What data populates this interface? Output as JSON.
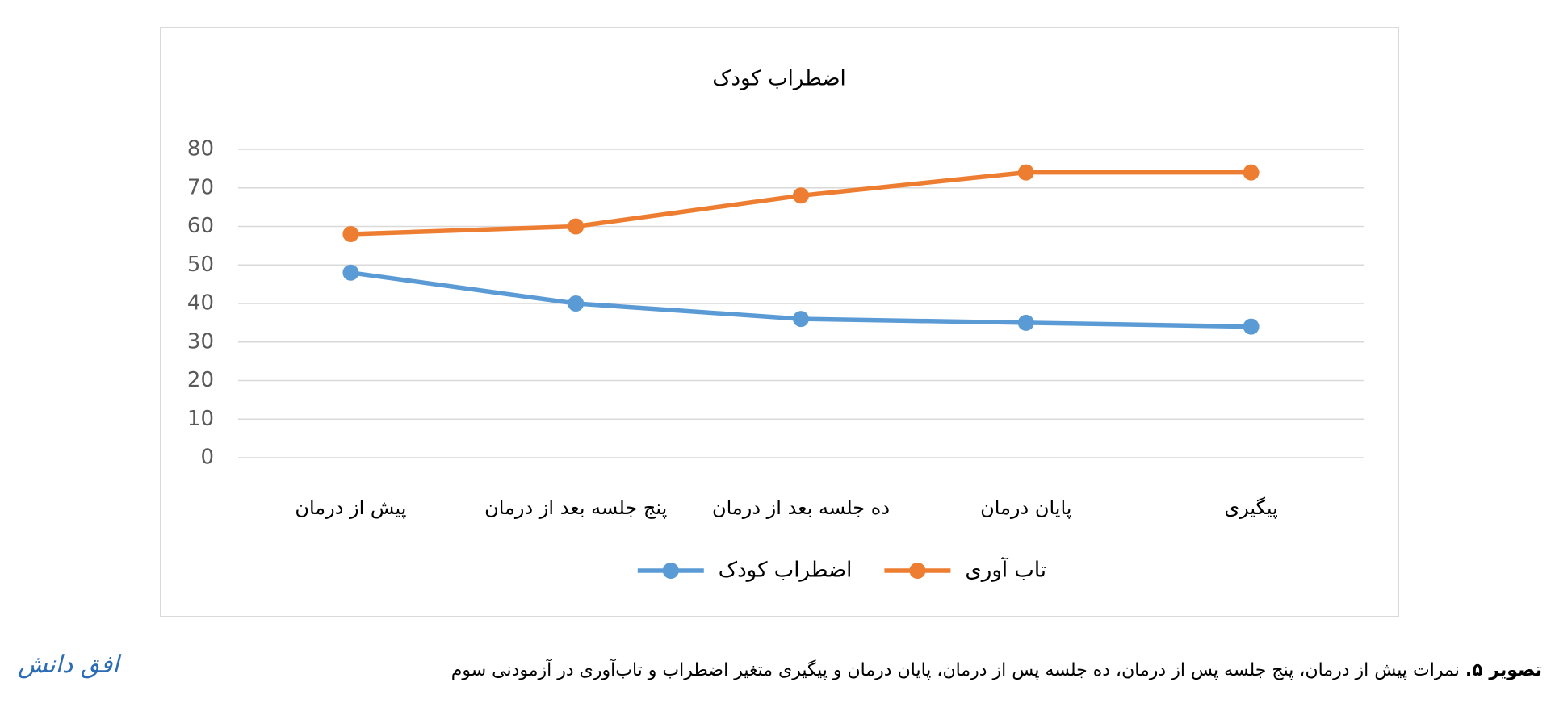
{
  "chart_data": {
    "type": "line",
    "title": "اضطراب کودک",
    "categories": [
      "پیش از درمان",
      "پنج جلسه بعد از درمان",
      "ده جلسه بعد از درمان",
      "پایان درمان",
      "پیگیری"
    ],
    "series": [
      {
        "name": "تاب آوری",
        "color": "#ed7d31",
        "values": [
          58,
          60,
          68,
          74,
          74
        ]
      },
      {
        "name": "اضطراب کودک",
        "color": "#5b9bd5",
        "values": [
          48,
          40,
          36,
          35,
          34
        ]
      }
    ],
    "ylim": [
      0,
      80
    ],
    "yticks": [
      0,
      10,
      20,
      30,
      40,
      50,
      60,
      70,
      80
    ],
    "grid": true,
    "legend": "bottom"
  },
  "caption": {
    "label": "تصویر ۵.",
    "text": "نمرات پیش از درمان، پنج جلسه پس از درمان، ده جلسه پس از درمان، پایان درمان و پیگیری متغیر اضطراب و تاب‌آوری در آزمودنی سوم"
  },
  "logo": "افق دانش"
}
